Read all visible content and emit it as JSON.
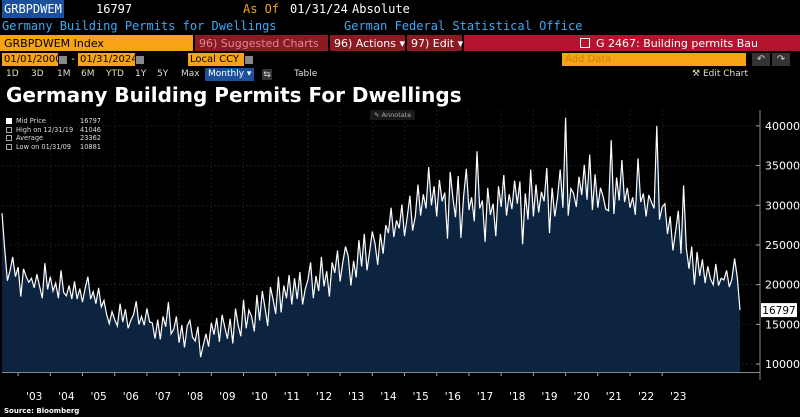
{
  "header": {
    "ticker": "GRBPDWEM",
    "last": "16797",
    "as_of_label": "As Of",
    "as_of_date": "01/31/24",
    "mode": "Absolute",
    "series_name": "Germany Building Permits for Dwellings",
    "source_name": "German Federal Statistical Office"
  },
  "toolbar": {
    "index_label": "GRBPDWEM Index",
    "suggested": "96) Suggested Charts",
    "actions": "Actions",
    "actions_num": "96)",
    "edit": "Edit",
    "edit_num": "97)",
    "chart_title": "G 2467: Building permits Bau"
  },
  "controls": {
    "start_date": "01/01/2000",
    "end_date": "01/31/2024",
    "currency": "Local CCY",
    "frequency": "Monthly",
    "add_data": "Add Data",
    "edit_chart": "Edit Chart"
  },
  "timebar": {
    "ranges": [
      "1D",
      "3D",
      "1M",
      "6M",
      "YTD",
      "1Y",
      "5Y",
      "Max"
    ],
    "freq_selected": "Monthly",
    "table": "Table"
  },
  "chart_title_big": "Germany Building Permits For Dwellings",
  "annotate": "Annotate",
  "legend": {
    "series": "Mid Price",
    "series_value": "16797",
    "high_label": "High on 12/31/19",
    "high_value": "41046",
    "avg_label": "Average",
    "avg_value": "23362",
    "low_label": "Low on 01/31/09",
    "low_value": "10881"
  },
  "source": "Source: Bloomberg",
  "colors": {
    "orange": "#f6a416",
    "red": "#b4142d",
    "blue": "#3fa9f5",
    "fill": "#0c2440"
  },
  "chart_data": {
    "type": "area",
    "title": "Germany Building Permits For Dwellings",
    "x_start": "2002-07",
    "x_end": "2024-01",
    "ylim": [
      9000,
      42000
    ],
    "yticks": [
      10000,
      15000,
      20000,
      25000,
      30000,
      35000,
      40000
    ],
    "xticks": [
      "'03",
      "'04",
      "'05",
      "'06",
      "'07",
      "'08",
      "'09",
      "'10",
      "'11",
      "'12",
      "'13",
      "'14",
      "'15",
      "'16",
      "'17",
      "'18",
      "'19",
      "'20",
      "'21",
      "'22",
      "'23"
    ],
    "last_value_label": "16797",
    "values": [
      29000,
      24500,
      20500,
      21800,
      23500,
      21000,
      22200,
      18500,
      22000,
      21000,
      20300,
      20800,
      19600,
      21300,
      19800,
      18300,
      22700,
      19400,
      21000,
      19200,
      20200,
      18300,
      21800,
      19000,
      18600,
      19900,
      18200,
      20400,
      18200,
      19500,
      17800,
      19600,
      21000,
      18200,
      19100,
      17600,
      19600,
      17200,
      18000,
      16200,
      15100,
      16600,
      15600,
      14800,
      17600,
      15300,
      16900,
      14500,
      15500,
      16200,
      17900,
      15000,
      16000,
      14900,
      17000,
      15300,
      15200,
      13200,
      15600,
      13100,
      16000,
      14700,
      17800,
      13800,
      14400,
      16000,
      12700,
      14900,
      12100,
      14800,
      15500,
      13400,
      12900,
      14700,
      10881,
      12400,
      13800,
      12200,
      15200,
      13700,
      15800,
      12800,
      16200,
      14700,
      13200,
      15700,
      12600,
      17000,
      14900,
      13500,
      18100,
      14500,
      16800,
      16000,
      14100,
      18700,
      15500,
      19200,
      17100,
      14800,
      19700,
      18200,
      16300,
      21000,
      16500,
      19900,
      18300,
      21200,
      17500,
      20800,
      18200,
      21600,
      17500,
      19500,
      20600,
      22800,
      18300,
      21100,
      19200,
      23500,
      19800,
      21700,
      18500,
      22800,
      21500,
      24300,
      20400,
      22800,
      24800,
      23600,
      19900,
      23000,
      20900,
      25600,
      22300,
      26400,
      21800,
      24200,
      26700,
      25200,
      22500,
      26400,
      23900,
      27500,
      26500,
      29700,
      26000,
      28100,
      27100,
      30100,
      26100,
      28500,
      31200,
      26800,
      28600,
      32600,
      28700,
      31400,
      29600,
      34800,
      30000,
      32400,
      28600,
      33200,
      30500,
      31600,
      25800,
      34200,
      30900,
      28500,
      33700,
      25900,
      31100,
      34600,
      29400,
      31000,
      28000,
      36800,
      29600,
      30600,
      25400,
      32200,
      28800,
      30200,
      26100,
      32400,
      29800,
      33800,
      28700,
      31400,
      29500,
      33100,
      30200,
      33000,
      25100,
      31500,
      28200,
      34500,
      28600,
      32600,
      29100,
      31700,
      30500,
      34700,
      26500,
      32200,
      28600,
      31000,
      34500,
      29700,
      41046,
      28700,
      32100,
      31500,
      29800,
      33600,
      31300,
      35100,
      30700,
      36400,
      29400,
      33900,
      29700,
      32200,
      31100,
      29500,
      29300,
      38200,
      28900,
      33500,
      30600,
      35700,
      30400,
      32200,
      29700,
      31000,
      28800,
      35900,
      30400,
      31500,
      28600,
      31300,
      30400,
      29600,
      40000,
      28200,
      29800,
      30200,
      26400,
      28600,
      24300,
      26700,
      29300,
      23900,
      32500,
      24600,
      22000,
      24800,
      20000,
      24100,
      21100,
      23200,
      20200,
      22300,
      20700,
      20000,
      22600,
      19900,
      20800,
      20600,
      21800,
      19700,
      20700,
      23300,
      20900,
      16797
    ]
  }
}
